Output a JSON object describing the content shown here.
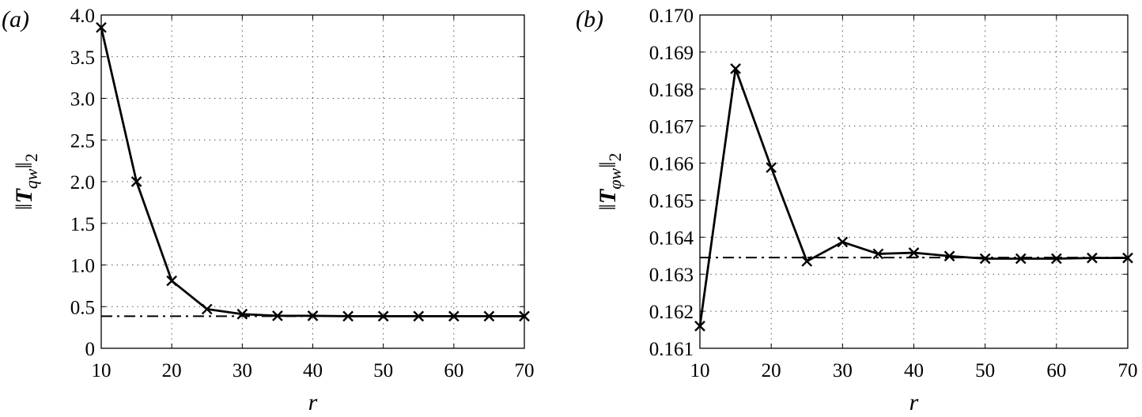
{
  "chart_data": [
    {
      "type": "line",
      "panel_label": "(a)",
      "xlabel": "r",
      "ylabel": "‖T_qw‖₂",
      "ylabel_parts": {
        "main": "T",
        "sub": "qw",
        "outer_sub": "2"
      },
      "xlim": [
        10,
        70
      ],
      "ylim": [
        0,
        4.0
      ],
      "xticks": [
        10,
        20,
        30,
        40,
        50,
        60,
        70
      ],
      "xtick_labels": [
        "10",
        "20",
        "30",
        "40",
        "50",
        "60",
        "70"
      ],
      "yticks": [
        0,
        0.5,
        1.0,
        1.5,
        2.0,
        2.5,
        3.0,
        3.5,
        4.0
      ],
      "ytick_labels": [
        "0",
        "0.5",
        "1.0",
        "1.5",
        "2.0",
        "2.5",
        "3.0",
        "3.5",
        "4.0"
      ],
      "grid": true,
      "series": [
        {
          "x": [
            10,
            15,
            20,
            25,
            30,
            35,
            40,
            45,
            50,
            55,
            60,
            65,
            70
          ],
          "y": [
            3.85,
            2.0,
            0.81,
            0.47,
            0.41,
            0.39,
            0.39,
            0.385,
            0.385,
            0.385,
            0.385,
            0.385,
            0.385
          ],
          "marker": "x"
        }
      ],
      "reference_line": {
        "y": 0.385,
        "style": "dash-dot"
      }
    },
    {
      "type": "line",
      "panel_label": "(b)",
      "xlabel": "r",
      "ylabel": "‖T_φw‖₂",
      "ylabel_parts": {
        "main": "T",
        "sub": "φw",
        "outer_sub": "2"
      },
      "xlim": [
        10,
        70
      ],
      "ylim": [
        0.161,
        0.17
      ],
      "xticks": [
        10,
        20,
        30,
        40,
        50,
        60,
        70
      ],
      "xtick_labels": [
        "10",
        "20",
        "30",
        "40",
        "50",
        "60",
        "70"
      ],
      "yticks": [
        0.161,
        0.162,
        0.163,
        0.164,
        0.165,
        0.166,
        0.167,
        0.168,
        0.169,
        0.17
      ],
      "ytick_labels": [
        "0.161",
        "0.162",
        "0.163",
        "0.164",
        "0.165",
        "0.166",
        "0.167",
        "0.168",
        "0.169",
        "0.170"
      ],
      "grid": true,
      "series": [
        {
          "x": [
            10,
            15,
            20,
            25,
            30,
            35,
            40,
            45,
            50,
            55,
            60,
            65,
            70
          ],
          "y": [
            0.1616,
            0.16855,
            0.16588,
            0.16335,
            0.16387,
            0.16355,
            0.16358,
            0.16349,
            0.16342,
            0.16342,
            0.16342,
            0.16344,
            0.16344
          ],
          "marker": "x"
        }
      ],
      "reference_line": {
        "y": 0.16345,
        "style": "dash-dot"
      }
    }
  ]
}
